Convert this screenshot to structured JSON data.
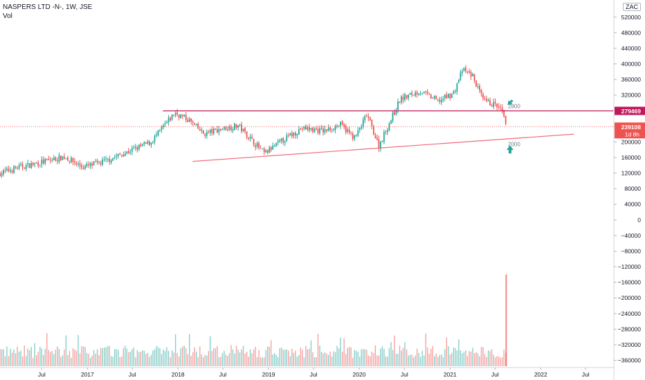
{
  "header": {
    "symbol_line": "NASPERS LTD -N-, 1W, JSE",
    "volume_label": "Vol",
    "currency": "ZAC"
  },
  "chart_data": {
    "type": "candlestick",
    "title": "NASPERS LTD -N-, 1W, JSE",
    "y_axis": {
      "ticks": [
        520000,
        480000,
        440000,
        400000,
        360000,
        320000,
        280000,
        240000,
        200000,
        160000,
        120000,
        80000,
        40000,
        0,
        -40000,
        -80000,
        -120000,
        -160000,
        -200000,
        -240000,
        -280000,
        -320000,
        -360000
      ],
      "tick_labels": [
        "520000",
        "480000",
        "440000",
        "400000",
        "360000",
        "320000",
        "280000",
        "240000",
        "200000",
        "160000",
        "120000",
        "80000",
        "40000",
        "0",
        "−40000",
        "−80000",
        "−120000",
        "−160000",
        "−200000",
        "−240000",
        "−280000",
        "−320000",
        "−360000"
      ],
      "range": [
        -375000,
        555000
      ]
    },
    "x_axis": {
      "tick_labels": [
        "Jul",
        "2017",
        "Jul",
        "2018",
        "Jul",
        "2019",
        "Jul",
        "2020",
        "Jul",
        "2021",
        "Jul",
        "2022",
        "Jul"
      ],
      "tick_dates": [
        "2016-07-01",
        "2017-01-01",
        "2017-07-01",
        "2018-01-01",
        "2018-07-01",
        "2019-01-01",
        "2019-07-01",
        "2020-01-01",
        "2020-07-01",
        "2021-01-01",
        "2021-07-01",
        "2022-01-01",
        "2022-07-01"
      ],
      "range": [
        "2016-01-15",
        "2022-10-20"
      ]
    },
    "price_key_points": [
      [
        "2016-01-15",
        120000
      ],
      [
        "2016-04-01",
        135000
      ],
      [
        "2016-07-01",
        148000
      ],
      [
        "2016-10-01",
        162000
      ],
      [
        "2016-12-15",
        135000
      ],
      [
        "2017-03-01",
        148000
      ],
      [
        "2017-06-15",
        175000
      ],
      [
        "2017-09-15",
        200000
      ],
      [
        "2017-12-20",
        275000
      ],
      [
        "2018-02-15",
        255000
      ],
      [
        "2018-04-15",
        220000
      ],
      [
        "2018-06-15",
        232000
      ],
      [
        "2018-09-01",
        242000
      ],
      [
        "2018-10-25",
        205000
      ],
      [
        "2018-12-15",
        170000
      ],
      [
        "2019-03-01",
        205000
      ],
      [
        "2019-05-15",
        235000
      ],
      [
        "2019-08-15",
        228000
      ],
      [
        "2019-10-15",
        245000
      ],
      [
        "2019-12-15",
        210000
      ],
      [
        "2020-02-01",
        270000
      ],
      [
        "2020-03-20",
        190000
      ],
      [
        "2020-06-15",
        310000
      ],
      [
        "2020-09-01",
        330000
      ],
      [
        "2020-11-15",
        305000
      ],
      [
        "2021-01-15",
        325000
      ],
      [
        "2021-02-20",
        385000
      ],
      [
        "2021-04-01",
        370000
      ],
      [
        "2021-05-15",
        305000
      ],
      [
        "2021-07-01",
        295000
      ],
      [
        "2021-07-28",
        280000
      ],
      [
        "2021-08-15",
        239108
      ]
    ],
    "horizontal_line": {
      "price": 279469,
      "from_date": "2017-11-01",
      "label": "2800"
    },
    "trend_line": {
      "from": [
        "2018-03-01",
        150000
      ],
      "to": [
        "2022-05-15",
        220000
      ],
      "label": "2000"
    },
    "current_price": 239108,
    "last_value_label": "239108",
    "countdown_label": "1d 8h",
    "line_price_label": "279469",
    "volume_spike": {
      "date": "2021-08-15",
      "top_value": -140000
    },
    "annotations": [
      "2800",
      "2000"
    ],
    "colors": {
      "up": "#26a69a",
      "down": "#ef5350",
      "hline": "#c2185b",
      "trend": "#f06a7a",
      "text": "#131722",
      "grid": "#eef0f3"
    },
    "grid": false,
    "volume_shown": true
  }
}
